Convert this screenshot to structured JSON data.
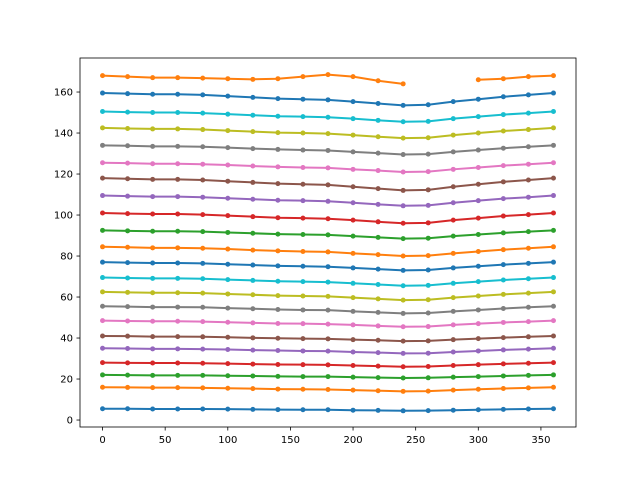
{
  "chart_data": {
    "type": "line",
    "x": [
      0,
      20,
      40,
      60,
      80,
      100,
      120,
      140,
      160,
      180,
      200,
      220,
      240,
      260,
      280,
      300,
      320,
      340,
      360
    ],
    "xlim": [
      -18,
      378
    ],
    "xticks": [
      0,
      50,
      100,
      150,
      200,
      250,
      300,
      350
    ],
    "ylim": [
      -3.4,
      176.6
    ],
    "yticks": [
      0,
      20,
      40,
      60,
      80,
      100,
      120,
      140,
      160
    ],
    "series": [
      {
        "color": "#1f77b4",
        "values": [
          5.5,
          5.5,
          5.4,
          5.4,
          5.4,
          5.3,
          5.2,
          5.1,
          5,
          5,
          4.8,
          4.7,
          4.5,
          4.6,
          4.8,
          5,
          5.2,
          5.4,
          5.5
        ]
      },
      {
        "color": "#ff7f0e",
        "values": [
          16,
          15.9,
          15.8,
          15.8,
          15.7,
          15.5,
          15.3,
          15.1,
          15,
          14.9,
          14.6,
          14.3,
          14,
          14.1,
          14.6,
          15,
          15.4,
          15.7,
          16
        ]
      },
      {
        "color": "#2ca02c",
        "values": [
          22,
          21.9,
          21.8,
          21.8,
          21.8,
          21.6,
          21.5,
          21.3,
          21.2,
          21.2,
          20.9,
          20.7,
          20.5,
          20.6,
          20.9,
          21.2,
          21.5,
          21.8,
          22
        ]
      },
      {
        "color": "#d62728",
        "values": [
          28,
          27.9,
          27.8,
          27.8,
          27.7,
          27.5,
          27.3,
          27.1,
          27,
          26.9,
          26.6,
          26.3,
          26,
          26.1,
          26.6,
          27,
          27.4,
          27.7,
          28
        ]
      },
      {
        "color": "#9467bd",
        "values": [
          35,
          34.9,
          34.7,
          34.7,
          34.6,
          34.4,
          34.1,
          33.9,
          33.7,
          33.6,
          33.2,
          32.9,
          32.5,
          32.6,
          33.2,
          33.7,
          34.2,
          34.6,
          35
        ]
      },
      {
        "color": "#8c564b",
        "values": [
          41,
          40.9,
          40.7,
          40.7,
          40.6,
          40.4,
          40.1,
          39.9,
          39.7,
          39.6,
          39.2,
          38.9,
          38.5,
          38.6,
          39.2,
          39.7,
          40.2,
          40.6,
          41
        ]
      },
      {
        "color": "#e377c2",
        "values": [
          48.5,
          48.3,
          48.2,
          48.2,
          48,
          47.7,
          47.4,
          47.1,
          47,
          46.8,
          46.4,
          45.9,
          45.5,
          45.6,
          46.4,
          47,
          47.6,
          48,
          48.5
        ]
      },
      {
        "color": "#7f7f7f",
        "values": [
          55.5,
          55.3,
          55.1,
          55.1,
          55,
          54.6,
          54.3,
          53.9,
          53.7,
          53.6,
          53,
          52.5,
          52,
          52.2,
          53,
          53.7,
          54.4,
          55,
          55.5
        ]
      },
      {
        "color": "#bcbd22",
        "values": [
          62.5,
          62.3,
          62.1,
          62.1,
          61.9,
          61.5,
          61.1,
          60.7,
          60.5,
          60.3,
          59.7,
          59.1,
          58.5,
          58.7,
          59.7,
          60.5,
          61.3,
          61.9,
          62.5
        ]
      },
      {
        "color": "#17becf",
        "values": [
          69.5,
          69.3,
          69.1,
          69.1,
          68.9,
          68.5,
          68.1,
          67.7,
          67.5,
          67.3,
          66.7,
          66.1,
          65.5,
          65.7,
          66.7,
          67.5,
          68.3,
          68.9,
          69.5
        ]
      },
      {
        "color": "#1f77b4",
        "values": [
          77,
          76.8,
          76.6,
          76.6,
          76.4,
          76,
          75.6,
          75.2,
          75,
          74.8,
          74.2,
          73.6,
          73,
          73.2,
          74.2,
          75,
          75.8,
          76.4,
          77
        ]
      },
      {
        "color": "#ff7f0e",
        "values": [
          84.5,
          84.3,
          84,
          84,
          83.8,
          83.4,
          82.9,
          82.5,
          82.2,
          82,
          81.3,
          80.7,
          80,
          80.2,
          81.3,
          82.2,
          83.1,
          83.8,
          84.5
        ]
      },
      {
        "color": "#2ca02c",
        "values": [
          92.5,
          92.3,
          92.1,
          92.1,
          91.9,
          91.5,
          91.1,
          90.7,
          90.5,
          90.3,
          89.7,
          89.1,
          88.5,
          88.7,
          89.7,
          90.5,
          91.3,
          91.9,
          92.5
        ]
      },
      {
        "color": "#d62728",
        "values": [
          101,
          100.7,
          100.5,
          100.5,
          100.2,
          99.7,
          99.2,
          98.7,
          98.5,
          98.2,
          97.5,
          96.7,
          96,
          96.2,
          97.5,
          98.5,
          99.5,
          100.2,
          101
        ]
      },
      {
        "color": "#9467bd",
        "values": [
          109.5,
          109.2,
          109,
          109,
          108.7,
          108.2,
          107.7,
          107.2,
          107,
          106.7,
          106,
          105.2,
          104.5,
          104.7,
          106,
          107,
          108,
          108.7,
          109.5
        ]
      },
      {
        "color": "#8c564b",
        "values": [
          118,
          117.7,
          117.4,
          117.4,
          117.1,
          116.5,
          115.9,
          115.3,
          115,
          114.7,
          113.8,
          112.9,
          112,
          112.3,
          113.8,
          115,
          116.2,
          117.1,
          118
        ]
      },
      {
        "color": "#e377c2",
        "values": [
          125.5,
          125.3,
          125,
          125,
          124.8,
          124.4,
          123.9,
          123.5,
          123.2,
          123,
          122.3,
          121.7,
          121,
          121.2,
          122.3,
          123.2,
          124.1,
          124.8,
          125.5
        ]
      },
      {
        "color": "#7f7f7f",
        "values": [
          134,
          133.8,
          133.5,
          133.5,
          133.3,
          132.9,
          132.4,
          132,
          131.7,
          131.5,
          130.8,
          130.2,
          129.5,
          129.7,
          130.8,
          131.7,
          132.6,
          133.3,
          134
        ]
      },
      {
        "color": "#bcbd22",
        "values": [
          142.5,
          142.2,
          142,
          142,
          141.7,
          141.2,
          140.7,
          140.2,
          140,
          139.7,
          139,
          138.2,
          137.5,
          137.7,
          139,
          140,
          141,
          141.7,
          142.5
        ]
      },
      {
        "color": "#17becf",
        "values": [
          150.5,
          150.2,
          150,
          150,
          149.7,
          149.2,
          148.7,
          148.2,
          148,
          147.7,
          147,
          146.2,
          145.5,
          145.7,
          147,
          148,
          149,
          149.7,
          150.5
        ]
      },
      {
        "color": "#1f77b4",
        "values": [
          159.5,
          159.2,
          158.9,
          158.9,
          158.6,
          158,
          157.4,
          156.8,
          156.5,
          156.2,
          155.3,
          154.4,
          153.5,
          153.8,
          155.3,
          156.5,
          157.7,
          158.6,
          159.5
        ]
      },
      {
        "color": "#ff7f0e",
        "values": [
          168,
          167.5,
          167,
          167,
          166.8,
          166.5,
          166.2,
          166.5,
          167.5,
          168.5,
          167.5,
          165.5,
          164,
          null,
          null,
          166,
          166.5,
          167.5,
          168
        ]
      }
    ]
  }
}
